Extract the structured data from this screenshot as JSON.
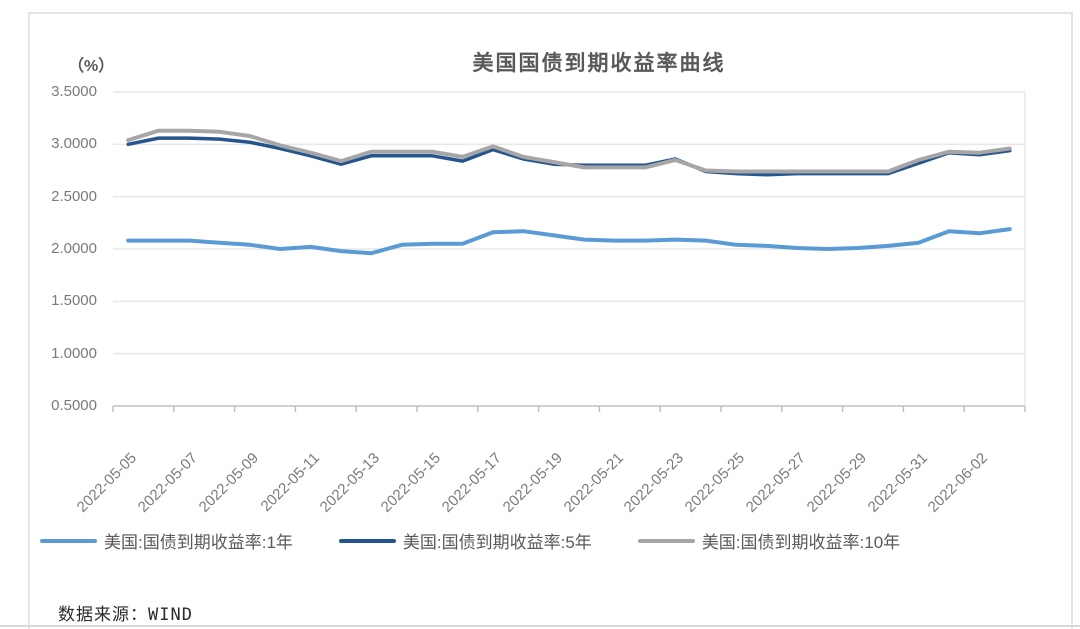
{
  "page": {
    "source_note": "数据来源：WIND"
  },
  "chart": {
    "legend_items": [
      "美国:国债到期收益率:1年",
      "美国:国债到期收益率:5年",
      "美国:国债到期收益率:10年"
    ]
  },
  "chart_data": {
    "type": "line",
    "title": "美国国债到期收益率曲线",
    "ylabel": "（%）",
    "xlabel": "",
    "ylim": [
      0.5,
      3.5
    ],
    "ytick_step": 0.5,
    "ytick_labels": [
      "3.5000",
      "3.0000",
      "2.5000",
      "2.0000",
      "1.5000",
      "1.0000",
      "0.5000"
    ],
    "grid": "horizontal",
    "legend_position": "bottom",
    "x": [
      "2022-05-05",
      "2022-05-06",
      "2022-05-07",
      "2022-05-08",
      "2022-05-09",
      "2022-05-10",
      "2022-05-11",
      "2022-05-12",
      "2022-05-13",
      "2022-05-14",
      "2022-05-15",
      "2022-05-16",
      "2022-05-17",
      "2022-05-18",
      "2022-05-19",
      "2022-05-20",
      "2022-05-21",
      "2022-05-22",
      "2022-05-23",
      "2022-05-24",
      "2022-05-25",
      "2022-05-26",
      "2022-05-27",
      "2022-05-28",
      "2022-05-29",
      "2022-05-30",
      "2022-05-31",
      "2022-06-01",
      "2022-06-02",
      "2022-06-03"
    ],
    "xtick_labels": [
      "2022-05-05",
      "2022-05-07",
      "2022-05-09",
      "2022-05-11",
      "2022-05-13",
      "2022-05-15",
      "2022-05-17",
      "2022-05-19",
      "2022-05-21",
      "2022-05-23",
      "2022-05-25",
      "2022-05-27",
      "2022-05-29",
      "2022-05-31",
      "2022-06-02"
    ],
    "xtick_every": 2,
    "series": [
      {
        "name": "美国:国债到期收益率:1年",
        "color": "#5B9BD5",
        "values": [
          2.08,
          2.08,
          2.08,
          2.06,
          2.04,
          2.0,
          2.02,
          1.98,
          1.96,
          2.04,
          2.05,
          2.05,
          2.16,
          2.17,
          2.13,
          2.09,
          2.08,
          2.08,
          2.09,
          2.08,
          2.04,
          2.03,
          2.01,
          2.0,
          2.01,
          2.03,
          2.06,
          2.17,
          2.15,
          2.19
        ]
      },
      {
        "name": "美国:国债到期收益率:5年",
        "color": "#24558E",
        "values": [
          3.0,
          3.06,
          3.06,
          3.05,
          3.02,
          2.96,
          2.89,
          2.81,
          2.89,
          2.89,
          2.89,
          2.84,
          2.95,
          2.86,
          2.81,
          2.8,
          2.8,
          2.8,
          2.86,
          2.74,
          2.72,
          2.71,
          2.72,
          2.72,
          2.72,
          2.72,
          2.82,
          2.92,
          2.9,
          2.94
        ]
      },
      {
        "name": "美国:国债到期收益率:10年",
        "color": "#A6A6A6",
        "values": [
          3.04,
          3.13,
          3.13,
          3.12,
          3.08,
          2.99,
          2.92,
          2.84,
          2.93,
          2.93,
          2.93,
          2.88,
          2.98,
          2.88,
          2.83,
          2.78,
          2.78,
          2.78,
          2.85,
          2.75,
          2.74,
          2.74,
          2.74,
          2.74,
          2.74,
          2.74,
          2.85,
          2.93,
          2.92,
          2.96
        ]
      }
    ],
    "colors": {
      "gridline": "#e8e8e8",
      "axis": "#c0c0c0",
      "tick_text": "#7a7a7a",
      "title_text": "#595959"
    }
  }
}
